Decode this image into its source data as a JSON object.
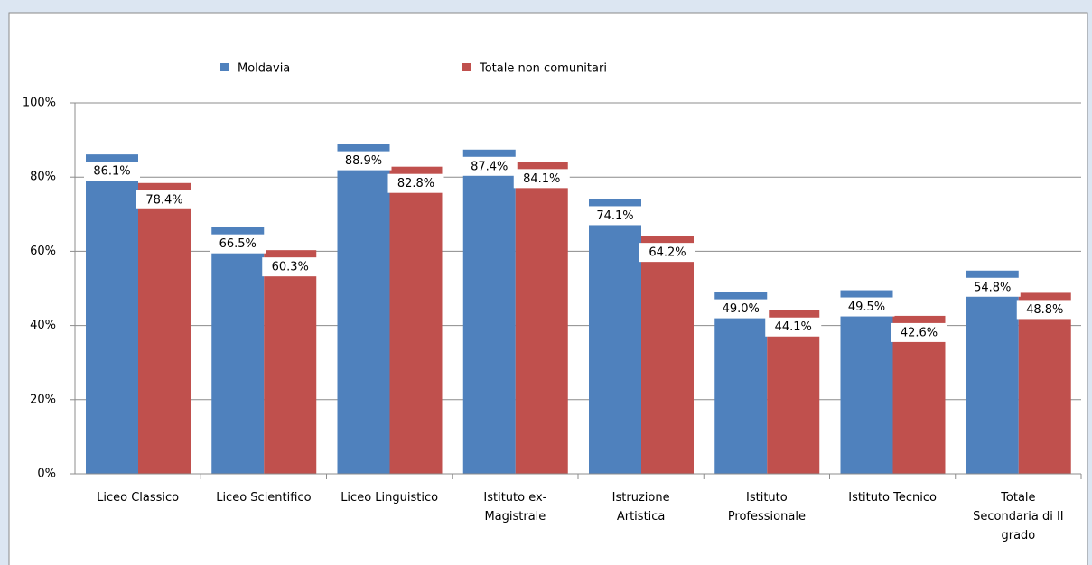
{
  "chart_data": {
    "type": "bar",
    "categories": [
      "Liceo Classico",
      "Liceo Scientifico",
      "Liceo Linguistico",
      "Istituto ex-Magistrale",
      "Istruzione Artistica",
      "Istituto Professionale",
      "Istituto Tecnico",
      "Totale Secondaria di II grado"
    ],
    "series": [
      {
        "name": "Moldavia",
        "color": "#4f81bd",
        "values": [
          86.1,
          66.5,
          88.9,
          87.4,
          74.1,
          49.0,
          49.5,
          54.8
        ],
        "value_labels": [
          "86.1%",
          "66.5%",
          "88.9%",
          "87.4%",
          "74.1%",
          "49.0%",
          "49.5%",
          "54.8%"
        ]
      },
      {
        "name": "Totale non comunitari",
        "color": "#c0504d",
        "values": [
          78.4,
          60.3,
          82.8,
          84.1,
          64.2,
          44.1,
          42.6,
          48.8
        ],
        "value_labels": [
          "78.4%",
          "60.3%",
          "82.8%",
          "84.1%",
          "64.2%",
          "44.1%",
          "42.6%",
          "48.8%"
        ]
      }
    ],
    "ylim": [
      0,
      100
    ],
    "yticks": [
      {
        "value": 0,
        "label": "0%"
      },
      {
        "value": 20,
        "label": "20%"
      },
      {
        "value": 40,
        "label": "40%"
      },
      {
        "value": 60,
        "label": "60%"
      },
      {
        "value": 80,
        "label": "80%"
      },
      {
        "value": 100,
        "label": "100%"
      }
    ],
    "grid": true,
    "legend": "top"
  }
}
